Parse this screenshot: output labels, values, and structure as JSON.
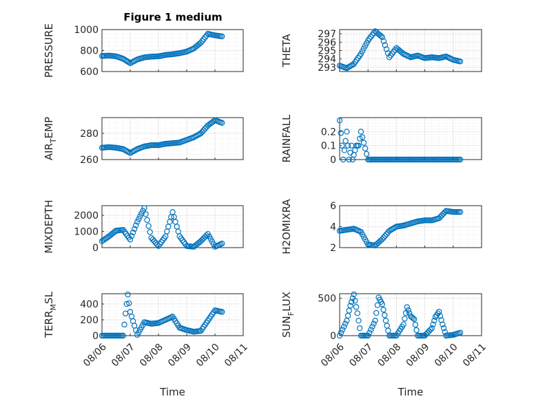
{
  "figure": {
    "title": "Figure 1 medium",
    "marker_color": "#0072BD",
    "axis_color": "#262626"
  },
  "chart_data": [
    {
      "type": "scatter",
      "ylabel": "PRESSURE",
      "xlabel": "",
      "ylim": [
        600,
        1000
      ],
      "yticks": [
        600,
        800,
        1000
      ],
      "xlim": [
        "08/06",
        "08/11"
      ],
      "minor_grid": true,
      "x": [
        "08/06 00:00",
        "08/06 06:00",
        "08/06 12:00",
        "08/06 18:00",
        "08/07 00:00",
        "08/07 06:00",
        "08/07 12:00",
        "08/07 18:00",
        "08/08 00:00",
        "08/08 06:00",
        "08/08 12:00",
        "08/08 18:00",
        "08/09 00:00",
        "08/09 06:00",
        "08/09 12:00",
        "08/09 18:00",
        "08/10 00:00",
        "08/10 06:00"
      ],
      "y": [
        748,
        752,
        745,
        722,
        680,
        715,
        735,
        742,
        745,
        758,
        765,
        775,
        790,
        820,
        875,
        960,
        945,
        935
      ]
    },
    {
      "type": "scatter",
      "ylabel": "THETA",
      "xlabel": "",
      "ylim": [
        292.5,
        297.5
      ],
      "yticks": [
        293,
        294,
        295,
        296,
        297
      ],
      "xlim": [
        "08/06",
        "08/11"
      ],
      "minor_grid": true,
      "x": [
        "08/06 00:00",
        "08/06 06:00",
        "08/06 12:00",
        "08/06 18:00",
        "08/07 00:00",
        "08/07 06:00",
        "08/07 12:00",
        "08/07 18:00",
        "08/08 00:00",
        "08/08 06:00",
        "08/08 12:00",
        "08/08 18:00",
        "08/09 00:00",
        "08/09 06:00",
        "08/09 12:00",
        "08/09 18:00",
        "08/10 00:00",
        "08/10 06:00"
      ],
      "y": [
        293.2,
        292.9,
        293.4,
        294.6,
        296.2,
        297.3,
        296.6,
        294.2,
        295.3,
        294.6,
        294.2,
        294.4,
        294.1,
        294.2,
        294.1,
        294.3,
        293.9,
        293.7
      ]
    },
    {
      "type": "scatter",
      "ylabel": "AIR",
      "ylabel_sub": "T",
      "ylabel_rest": "EMP",
      "xlabel": "",
      "ylim": [
        260,
        292
      ],
      "yticks": [
        260,
        280
      ],
      "xlim": [
        "08/06",
        "08/11"
      ],
      "minor_grid": true,
      "x": [
        "08/06 00:00",
        "08/06 06:00",
        "08/06 12:00",
        "08/06 18:00",
        "08/07 00:00",
        "08/07 06:00",
        "08/07 12:00",
        "08/07 18:00",
        "08/08 00:00",
        "08/08 06:00",
        "08/08 12:00",
        "08/08 18:00",
        "08/09 00:00",
        "08/09 06:00",
        "08/09 12:00",
        "08/09 18:00",
        "08/10 00:00",
        "08/10 06:00"
      ],
      "y": [
        269,
        269.5,
        269,
        268,
        265,
        268,
        270,
        271,
        271,
        272,
        272.5,
        273,
        275,
        277,
        280,
        286,
        290,
        288
      ]
    },
    {
      "type": "scatter",
      "ylabel": "RAINFALL",
      "xlabel": "",
      "ylim": [
        0,
        0.3
      ],
      "yticks": [
        0,
        0.1,
        0.2
      ],
      "xlim": [
        "08/06",
        "08/11"
      ],
      "minor_grid": true,
      "x": [
        "08/06 00:00",
        "08/06 02:00",
        "08/06 03:00",
        "08/06 06:00",
        "08/06 08:00",
        "08/06 10:00",
        "08/06 11:00",
        "08/06 14:00",
        "08/06 16:00",
        "08/06 18:00",
        "08/07 00:00",
        "08/07 12:00",
        "08/08 00:00",
        "08/08 12:00",
        "08/09 00:00",
        "08/09 12:00",
        "08/10 00:00",
        "08/10 06:00"
      ],
      "y": [
        0.28,
        0.1,
        0,
        0.2,
        0,
        0.1,
        0,
        0.1,
        0.1,
        0.2,
        0,
        0,
        0,
        0,
        0,
        0,
        0,
        0
      ]
    },
    {
      "type": "scatter",
      "ylabel": "MIXDEPTH",
      "xlabel": "",
      "ylim": [
        0,
        2600
      ],
      "yticks": [
        0,
        1000,
        2000
      ],
      "xlim": [
        "08/06",
        "08/11"
      ],
      "minor_grid": true,
      "x": [
        "08/06 00:00",
        "08/06 06:00",
        "08/06 12:00",
        "08/06 18:00",
        "08/07 00:00",
        "08/07 06:00",
        "08/07 12:00",
        "08/07 18:00",
        "08/08 00:00",
        "08/08 06:00",
        "08/08 12:00",
        "08/08 18:00",
        "08/09 00:00",
        "08/09 06:00",
        "08/09 12:00",
        "08/09 18:00",
        "08/10 00:00",
        "08/10 06:00"
      ],
      "y": [
        400,
        700,
        1050,
        1100,
        500,
        1600,
        2450,
        600,
        100,
        700,
        2200,
        700,
        100,
        50,
        400,
        850,
        50,
        250
      ]
    },
    {
      "type": "scatter",
      "ylabel": "H2OMIXRA",
      "xlabel": "",
      "ylim": [
        2,
        6
      ],
      "yticks": [
        2,
        4,
        6
      ],
      "xlim": [
        "08/06",
        "08/11"
      ],
      "minor_grid": true,
      "x": [
        "08/06 00:00",
        "08/06 06:00",
        "08/06 12:00",
        "08/06 18:00",
        "08/07 00:00",
        "08/07 06:00",
        "08/07 12:00",
        "08/07 18:00",
        "08/08 00:00",
        "08/08 06:00",
        "08/08 12:00",
        "08/08 18:00",
        "08/09 00:00",
        "08/09 06:00",
        "08/09 12:00",
        "08/09 18:00",
        "08/10 00:00",
        "08/10 06:00"
      ],
      "y": [
        3.6,
        3.7,
        3.8,
        3.5,
        2.3,
        2.2,
        2.8,
        3.6,
        4,
        4.1,
        4.3,
        4.5,
        4.6,
        4.6,
        4.8,
        5.5,
        5.4,
        5.4
      ]
    },
    {
      "type": "scatter",
      "ylabel": "TERR",
      "ylabel_sub": "M",
      "ylabel_rest": "SL",
      "xlabel": "Time",
      "ylim": [
        0,
        530
      ],
      "yticks": [
        0,
        200,
        400
      ],
      "xlim": [
        "08/06",
        "08/11"
      ],
      "xticks": [
        "08/06",
        "08/07",
        "08/08",
        "08/09",
        "08/10",
        "08/11"
      ],
      "minor_grid": true,
      "x": [
        "08/06 00:00",
        "08/06 06:00",
        "08/06 12:00",
        "08/06 18:00",
        "08/06 20:00",
        "08/06 22:00",
        "08/07 00:00",
        "08/07 06:00",
        "08/07 12:00",
        "08/07 18:00",
        "08/08 00:00",
        "08/08 06:00",
        "08/08 12:00",
        "08/08 18:00",
        "08/09 00:00",
        "08/09 06:00",
        "08/09 12:00",
        "08/10 00:00",
        "08/10 06:00"
      ],
      "y": [
        0,
        0,
        0,
        0,
        280,
        520,
        300,
        10,
        170,
        150,
        160,
        200,
        240,
        100,
        70,
        50,
        60,
        320,
        300
      ]
    },
    {
      "type": "scatter",
      "ylabel": "SUN",
      "ylabel_sub": "F",
      "ylabel_rest": "LUX",
      "xlabel": "Time",
      "ylim": [
        0,
        560
      ],
      "yticks": [
        0,
        500
      ],
      "xlim": [
        "08/06",
        "08/11"
      ],
      "xticks": [
        "08/06",
        "08/07",
        "08/08",
        "08/09",
        "08/10",
        "08/11"
      ],
      "minor_grid": true,
      "x": [
        "08/06 00:00",
        "08/06 06:00",
        "08/06 09:00",
        "08/06 12:00",
        "08/06 15:00",
        "08/06 18:00",
        "08/07 00:00",
        "08/07 06:00",
        "08/07 09:00",
        "08/07 12:00",
        "08/07 15:00",
        "08/07 18:00",
        "08/08 00:00",
        "08/08 06:00",
        "08/08 09:00",
        "08/08 12:00",
        "08/08 15:00",
        "08/08 18:00",
        "08/09 00:00",
        "08/09 06:00",
        "08/09 09:00",
        "08/09 12:00",
        "08/09 15:00",
        "08/09 18:00",
        "08/10 00:00",
        "08/10 06:00"
      ],
      "y": [
        0,
        200,
        400,
        550,
        300,
        0,
        0,
        200,
        510,
        420,
        200,
        0,
        0,
        150,
        380,
        260,
        220,
        0,
        0,
        100,
        250,
        320,
        150,
        0,
        10,
        40
      ]
    }
  ]
}
